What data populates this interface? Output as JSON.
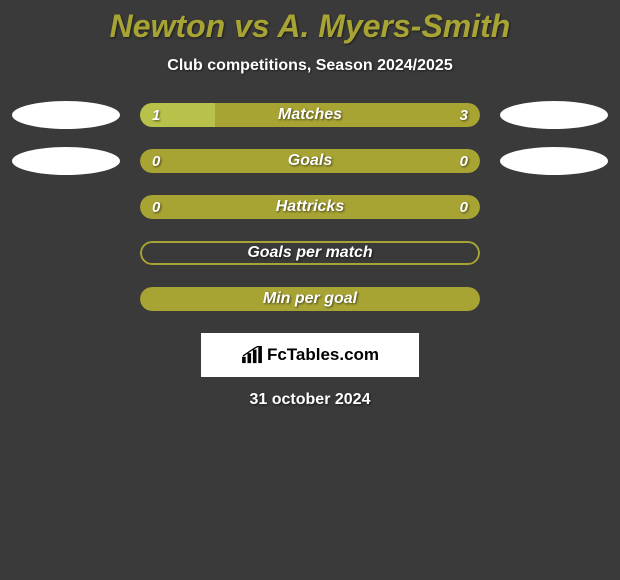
{
  "title": "Newton vs A. Myers-Smith",
  "subtitle": "Club competitions, Season 2024/2025",
  "colors": {
    "olive": "#a8a434",
    "olive_dark": "#8f8c2d",
    "light_green": "#b8c24a",
    "bg": "#3a3a3a",
    "white": "#ffffff"
  },
  "rows": [
    {
      "label": "Matches",
      "left_val": "1",
      "right_val": "3",
      "show_vals": true,
      "show_ellipses": true,
      "bg_color": "#a8a434",
      "fill_color": "#b8c24a",
      "fill_pct": 22,
      "border": false
    },
    {
      "label": "Goals",
      "left_val": "0",
      "right_val": "0",
      "show_vals": true,
      "show_ellipses": true,
      "bg_color": "#a8a434",
      "fill_color": "#a8a434",
      "fill_pct": 0,
      "border": false
    },
    {
      "label": "Hattricks",
      "left_val": "0",
      "right_val": "0",
      "show_vals": true,
      "show_ellipses": false,
      "bg_color": "#a8a434",
      "fill_color": "#a8a434",
      "fill_pct": 0,
      "border": false
    },
    {
      "label": "Goals per match",
      "left_val": "",
      "right_val": "",
      "show_vals": false,
      "show_ellipses": false,
      "bg_color": "#3a3a3a",
      "fill_color": "#3a3a3a",
      "fill_pct": 0,
      "border": true,
      "border_color": "#a8a434"
    },
    {
      "label": "Min per goal",
      "left_val": "",
      "right_val": "",
      "show_vals": false,
      "show_ellipses": false,
      "bg_color": "#a8a434",
      "fill_color": "#a8a434",
      "fill_pct": 0,
      "border": false
    }
  ],
  "logo": "FcTables.com",
  "date": "31 october 2024"
}
